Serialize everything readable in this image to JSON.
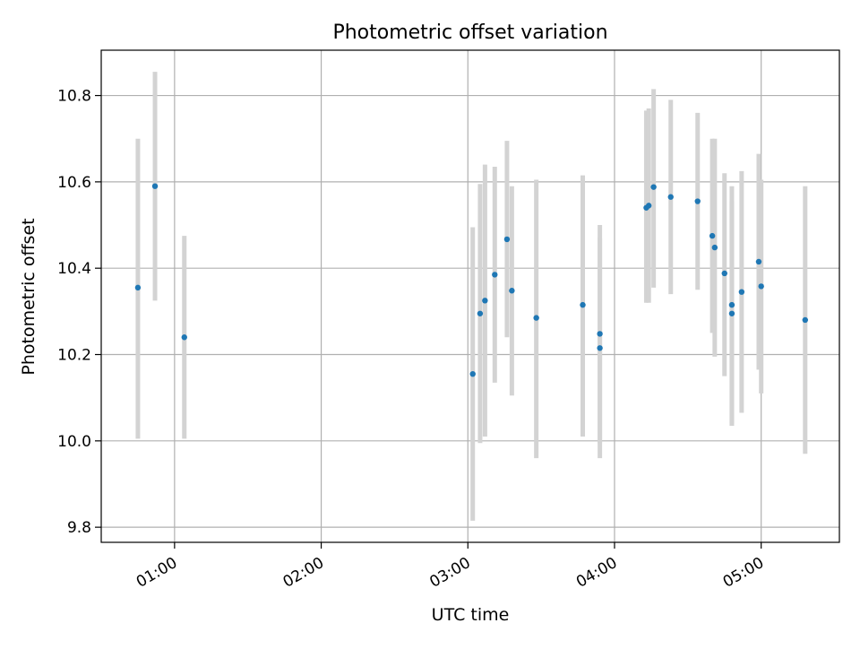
{
  "chart_data": {
    "type": "scatter",
    "title": "Photometric offset variation",
    "xlabel": "UTC time",
    "ylabel": "Photometric offset",
    "x_is_time": true,
    "xlim": [
      "00:30",
      "05:32"
    ],
    "ylim": [
      9.765,
      10.905
    ],
    "x_ticks": [
      "01:00",
      "02:00",
      "03:00",
      "04:00",
      "05:00"
    ],
    "y_ticks": [
      "9.8",
      "10.0",
      "10.2",
      "10.4",
      "10.6",
      "10.8"
    ],
    "grid": true,
    "legend": "none",
    "colors": {
      "point": "#1f77b4",
      "errorbar": "#d3d3d3",
      "grid": "#b0b0b0"
    },
    "series": [
      {
        "points": [
          {
            "x": "00:45",
            "y": 10.355,
            "ylow": 10.005,
            "yhigh": 10.7
          },
          {
            "x": "00:52",
            "y": 10.59,
            "ylow": 10.325,
            "yhigh": 10.855
          },
          {
            "x": "01:04",
            "y": 10.24,
            "ylow": 10.005,
            "yhigh": 10.475
          },
          {
            "x": "03:02",
            "y": 10.155,
            "ylow": 9.815,
            "yhigh": 10.495
          },
          {
            "x": "03:05",
            "y": 10.295,
            "ylow": 9.995,
            "yhigh": 10.595
          },
          {
            "x": "03:07",
            "y": 10.325,
            "ylow": 10.01,
            "yhigh": 10.64
          },
          {
            "x": "03:11",
            "y": 10.385,
            "ylow": 10.135,
            "yhigh": 10.635
          },
          {
            "x": "03:16",
            "y": 10.467,
            "ylow": 10.24,
            "yhigh": 10.695
          },
          {
            "x": "03:18",
            "y": 10.348,
            "ylow": 10.105,
            "yhigh": 10.59
          },
          {
            "x": "03:28",
            "y": 10.285,
            "ylow": 9.96,
            "yhigh": 10.605
          },
          {
            "x": "03:47",
            "y": 10.315,
            "ylow": 10.01,
            "yhigh": 10.615
          },
          {
            "x": "03:54",
            "y": 10.248,
            "ylow": 9.995,
            "yhigh": 10.5
          },
          {
            "x": "03:54",
            "y": 10.215,
            "ylow": 9.96,
            "yhigh": 10.47
          },
          {
            "x": "04:13",
            "y": 10.54,
            "ylow": 10.32,
            "yhigh": 10.765
          },
          {
            "x": "04:14",
            "y": 10.545,
            "ylow": 10.32,
            "yhigh": 10.77
          },
          {
            "x": "04:16",
            "y": 10.588,
            "ylow": 10.355,
            "yhigh": 10.815
          },
          {
            "x": "04:23",
            "y": 10.565,
            "ylow": 10.34,
            "yhigh": 10.79
          },
          {
            "x": "04:34",
            "y": 10.555,
            "ylow": 10.35,
            "yhigh": 10.76
          },
          {
            "x": "04:40",
            "y": 10.475,
            "ylow": 10.25,
            "yhigh": 10.7
          },
          {
            "x": "04:41",
            "y": 10.448,
            "ylow": 10.195,
            "yhigh": 10.7
          },
          {
            "x": "04:45",
            "y": 10.388,
            "ylow": 10.15,
            "yhigh": 10.62
          },
          {
            "x": "04:48",
            "y": 10.295,
            "ylow": 10.035,
            "yhigh": 10.555
          },
          {
            "x": "04:48",
            "y": 10.315,
            "ylow": 10.04,
            "yhigh": 10.59
          },
          {
            "x": "04:52",
            "y": 10.345,
            "ylow": 10.065,
            "yhigh": 10.625
          },
          {
            "x": "04:59",
            "y": 10.415,
            "ylow": 10.165,
            "yhigh": 10.665
          },
          {
            "x": "05:00",
            "y": 10.358,
            "ylow": 10.11,
            "yhigh": 10.605
          },
          {
            "x": "05:18",
            "y": 10.28,
            "ylow": 9.97,
            "yhigh": 10.59
          }
        ]
      }
    ]
  }
}
